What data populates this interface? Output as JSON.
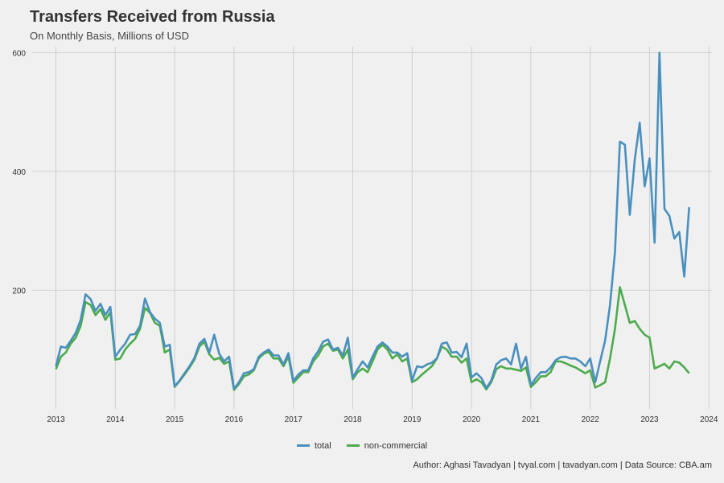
{
  "title": "Transfers Received from Russia",
  "subtitle": "On Monthly Basis, Millions of USD",
  "caption": "Author: Aghasi Tavadyan   |   tvyal.com   |   tavadyan.com   |   Data Source: CBA.am",
  "colors": {
    "total": "#4a90bf",
    "non_commercial": "#4cab4c",
    "grid": "#cfcfcf",
    "background": "#f0f0f0"
  },
  "chart_data": {
    "type": "line",
    "title": "Transfers Received from Russia",
    "subtitle": "On Monthly Basis, Millions of USD",
    "xlabel": "",
    "ylabel": "",
    "xlim": [
      2012.6,
      2024.05
    ],
    "ylim": [
      0,
      600
    ],
    "x_ticks": [
      "2013",
      "2014",
      "2015",
      "2016",
      "2017",
      "2018",
      "2019",
      "2020",
      "2021",
      "2022",
      "2023",
      "2024"
    ],
    "y_ticks": [
      "200",
      "400",
      "600"
    ],
    "grid": true,
    "legend_position": "bottom",
    "x_start": "2013-01",
    "series": [
      {
        "name": "total",
        "values": [
          72,
          105,
          103,
          115,
          128,
          150,
          193,
          185,
          165,
          177,
          158,
          172,
          88,
          100,
          110,
          125,
          126,
          140,
          186,
          163,
          152,
          145,
          105,
          108,
          38,
          48,
          60,
          72,
          86,
          110,
          118,
          95,
          125,
          93,
          80,
          88,
          34,
          45,
          60,
          62,
          67,
          88,
          95,
          100,
          90,
          90,
          75,
          94,
          47,
          58,
          65,
          65,
          85,
          97,
          113,
          117,
          100,
          103,
          90,
          120,
          53,
          67,
          80,
          70,
          88,
          105,
          112,
          105,
          95,
          95,
          88,
          94,
          48,
          72,
          70,
          75,
          78,
          85,
          110,
          112,
          95,
          96,
          87,
          110,
          53,
          60,
          52,
          35,
          48,
          75,
          82,
          85,
          75,
          110,
          68,
          88,
          40,
          52,
          62,
          62,
          70,
          82,
          87,
          88,
          85,
          85,
          80,
          72,
          85,
          45,
          80,
          115,
          175,
          265,
          450,
          445,
          327,
          420,
          482,
          375,
          422,
          280,
          600,
          337,
          325,
          287,
          298,
          223,
          340
        ]
      },
      {
        "name": "non-commercial",
        "values": [
          67,
          88,
          95,
          110,
          120,
          140,
          180,
          175,
          158,
          168,
          150,
          163,
          83,
          85,
          100,
          110,
          118,
          135,
          170,
          162,
          145,
          140,
          95,
          100,
          37,
          47,
          58,
          70,
          83,
          105,
          113,
          92,
          83,
          86,
          76,
          80,
          32,
          42,
          55,
          58,
          65,
          85,
          93,
          96,
          85,
          85,
          72,
          88,
          44,
          53,
          62,
          62,
          80,
          90,
          105,
          110,
          98,
          100,
          85,
          100,
          50,
          62,
          68,
          62,
          80,
          100,
          108,
          100,
          85,
          92,
          80,
          85,
          45,
          50,
          58,
          65,
          72,
          85,
          105,
          100,
          88,
          88,
          78,
          85,
          45,
          50,
          45,
          33,
          45,
          67,
          72,
          68,
          68,
          66,
          64,
          70,
          37,
          45,
          55,
          55,
          62,
          80,
          80,
          77,
          73,
          70,
          65,
          60,
          65,
          36,
          40,
          45,
          85,
          135,
          205,
          175,
          145,
          148,
          135,
          125,
          120,
          68,
          72,
          76,
          68,
          80,
          78,
          70,
          60
        ]
      }
    ]
  }
}
